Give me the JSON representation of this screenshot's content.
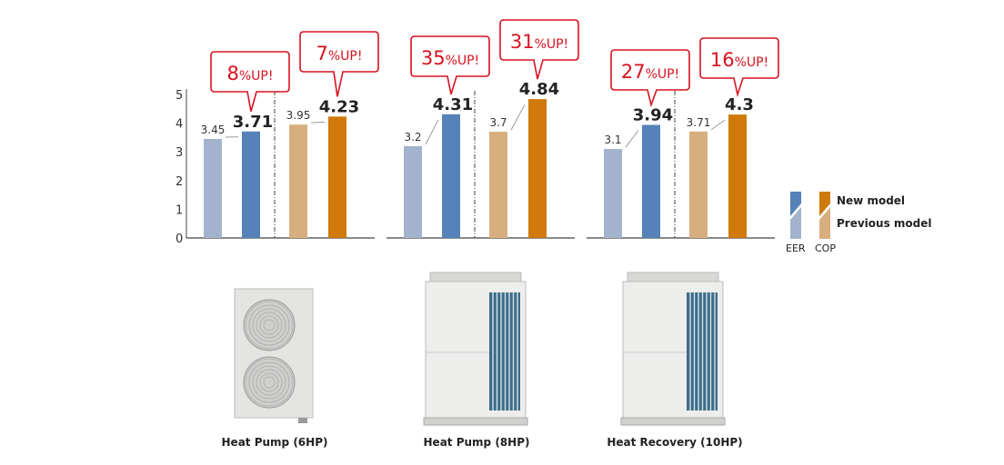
{
  "chart_data": {
    "type": "bar",
    "ylim": [
      0,
      5
    ],
    "yticks": [
      "0",
      "1",
      "2",
      "3",
      "4",
      "5"
    ],
    "groups": [
      {
        "product": "Heat Pump (6HP)",
        "eer": {
          "previous": 3.45,
          "new": 3.71,
          "previous_label": "3.45",
          "new_label": "3.71",
          "gain_num": "8",
          "gain_suffix": "%UP!"
        },
        "cop": {
          "previous": 3.95,
          "new": 4.23,
          "previous_label": "3.95",
          "new_label": "4.23",
          "gain_num": "7",
          "gain_suffix": "%UP!"
        }
      },
      {
        "product": "Heat Pump (8HP)",
        "eer": {
          "previous": 3.2,
          "new": 4.31,
          "previous_label": "3.2",
          "new_label": "4.31",
          "gain_num": "35",
          "gain_suffix": "%UP!"
        },
        "cop": {
          "previous": 3.7,
          "new": 4.84,
          "previous_label": "3.7",
          "new_label": "4.84",
          "gain_num": "31",
          "gain_suffix": "%UP!"
        }
      },
      {
        "product": "Heat Recovery (10HP)",
        "eer": {
          "previous": 3.1,
          "new": 3.94,
          "previous_label": "3.1",
          "new_label": "3.94",
          "gain_num": "27",
          "gain_suffix": "%UP!"
        },
        "cop": {
          "previous": 3.71,
          "new": 4.3,
          "previous_label": "3.71",
          "new_label": "4.3",
          "gain_num": "16",
          "gain_suffix": "%UP!"
        }
      }
    ],
    "legend": {
      "new": "New model",
      "previous": "Previous model",
      "eer": "EER",
      "cop": "COP",
      "placement": "right"
    }
  },
  "colors": {
    "eer_new": "#5582b9",
    "eer_prev": "#a3b3cd",
    "cop_new": "#cf7a0a",
    "cop_prev": "#d8ae7e",
    "callout": "#d7121f"
  }
}
